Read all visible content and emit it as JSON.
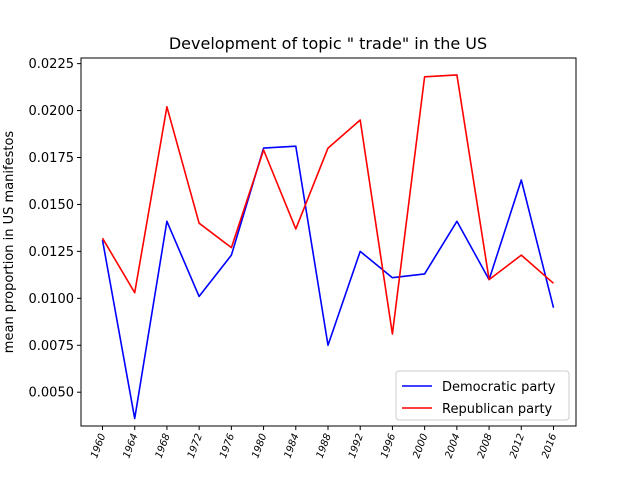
{
  "chart_data": {
    "type": "line",
    "title": "Development of topic \" trade\" in the US",
    "xlabel": "",
    "ylabel": "mean proportion in US manifestos",
    "x": [
      "1960",
      "1964",
      "1968",
      "1972",
      "1976",
      "1980",
      "1984",
      "1988",
      "1992",
      "1996",
      "2000",
      "2004",
      "2008",
      "2012",
      "2016"
    ],
    "ylim": [
      0.0032,
      0.0228
    ],
    "yticks": [
      "0.0050",
      "0.0075",
      "0.0100",
      "0.0125",
      "0.0150",
      "0.0175",
      "0.0200",
      "0.0225"
    ],
    "legend_position": "lower right",
    "grid": false,
    "series": [
      {
        "name": "Democratic party",
        "color": "#0000ff",
        "values": [
          0.0131,
          0.0036,
          0.0141,
          0.0101,
          0.0123,
          0.018,
          0.0181,
          0.0075,
          0.0125,
          0.0111,
          0.0113,
          0.0141,
          0.011,
          0.0163,
          0.0095
        ]
      },
      {
        "name": "Republican party",
        "color": "#ff0000",
        "values": [
          0.0132,
          0.0103,
          0.0202,
          0.014,
          0.0127,
          0.0179,
          0.0137,
          0.018,
          0.0195,
          0.0081,
          0.0218,
          0.0219,
          0.011,
          0.0123,
          0.0108
        ]
      }
    ]
  }
}
